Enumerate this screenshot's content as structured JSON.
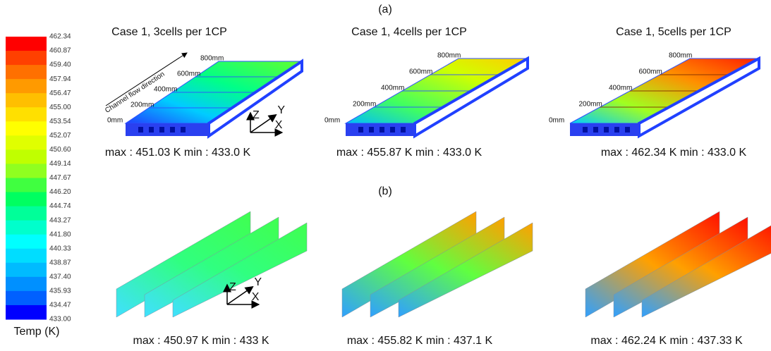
{
  "label_a": "(a)",
  "label_b": "(b)",
  "colorbar": {
    "title": "Temp (K)",
    "tick_labels": [
      "462.34",
      "460.87",
      "459.40",
      "457.94",
      "456.47",
      "455.00",
      "453.54",
      "452.07",
      "450.60",
      "449.14",
      "447.67",
      "446.20",
      "444.74",
      "443.27",
      "441.80",
      "440.33",
      "438.87",
      "437.40",
      "435.93",
      "434.47",
      "433.00"
    ]
  },
  "row_a": {
    "flow_label": "Channel flow direction",
    "axes": [
      "Z",
      "Y",
      "X"
    ],
    "panels": [
      {
        "title": "Case 1, 3cells per 1CP",
        "distance_labels": [
          "800mm",
          "600mm",
          "400mm",
          "200mm",
          "0mm"
        ],
        "caption": "max : 451.03  K  min : 433.0  K"
      },
      {
        "title": "Case 1, 4cells per 1CP",
        "distance_labels": [
          "800mm",
          "600mm",
          "400mm",
          "200mm",
          "0mm"
        ],
        "caption": "max : 455.87  K  min : 433.0  K"
      },
      {
        "title": "Case 1, 5cells per 1CP",
        "distance_labels": [
          "800mm",
          "600mm",
          "400mm",
          "200mm",
          "0mm"
        ],
        "caption": "max : 462.34  K  min : 433.0  K"
      }
    ]
  },
  "row_b": {
    "axes": [
      "Z",
      "Y",
      "X"
    ],
    "panels": [
      {
        "caption": "max : 450.97  K  min : 433  K"
      },
      {
        "caption": "max : 455.82  K  min : 437.1  K"
      },
      {
        "caption": "max : 462.24  K  min : 437.33  K"
      }
    ]
  }
}
